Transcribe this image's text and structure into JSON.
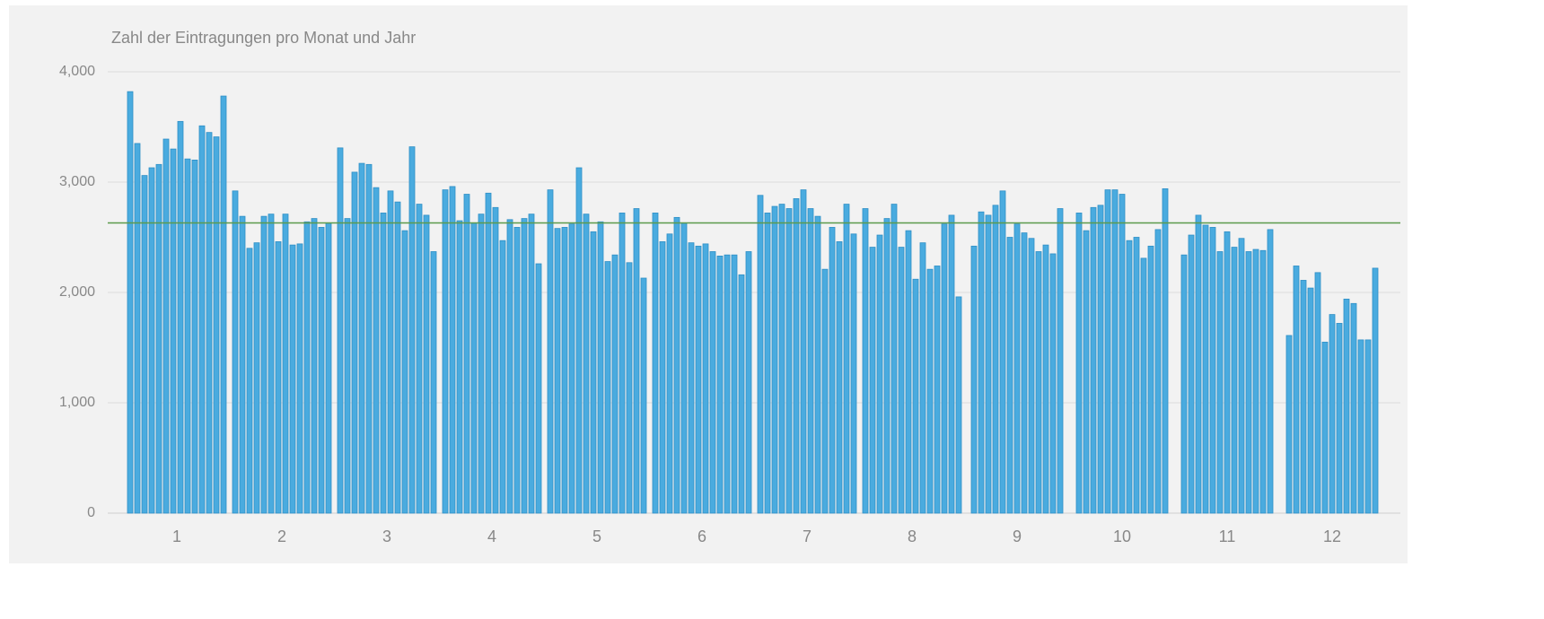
{
  "chart_data": {
    "type": "grouped-bar",
    "title": "Zahl der Eintragungen pro Monat und Jahr",
    "categories": [
      "1",
      "2",
      "3",
      "4",
      "5",
      "6",
      "7",
      "8",
      "9",
      "10",
      "11",
      "12"
    ],
    "values": [
      [
        3820,
        3350,
        3060,
        3130,
        3160,
        3390,
        3300,
        3550,
        3210,
        3200,
        3510,
        3450,
        3410,
        3780
      ],
      [
        2920,
        2690,
        2400,
        2450,
        2690,
        2710,
        2460,
        2710,
        2430,
        2440,
        2640,
        2670,
        2590,
        2630
      ],
      [
        3310,
        2670,
        3090,
        3170,
        3160,
        2950,
        2720,
        2920,
        2820,
        2560,
        3320,
        2800,
        2700,
        2370
      ],
      [
        2930,
        2960,
        2650,
        2890,
        2630,
        2710,
        2900,
        2770,
        2470,
        2660,
        2590,
        2670,
        2710,
        2260
      ],
      [
        2930,
        2580,
        2590,
        2620,
        3130,
        2710,
        2550,
        2640,
        2280,
        2340,
        2720,
        2270,
        2760,
        2130
      ],
      [
        2720,
        2460,
        2530,
        2680,
        2630,
        2450,
        2420,
        2440,
        2370,
        2330,
        2340,
        2340,
        2160,
        2370
      ],
      [
        2880,
        2720,
        2780,
        2800,
        2760,
        2850,
        2930,
        2760,
        2690,
        2210,
        2590,
        2460,
        2800,
        2530
      ],
      [
        2760,
        2410,
        2520,
        2670,
        2800,
        2410,
        2560,
        2120,
        2450,
        2210,
        2240,
        2620,
        2700,
        1960
      ],
      [
        2420,
        2730,
        2700,
        2790,
        2920,
        2500,
        2620,
        2540,
        2490,
        2370,
        2430,
        2350,
        2760
      ],
      [
        2720,
        2560,
        2770,
        2790,
        2930,
        2930,
        2890,
        2470,
        2500,
        2310,
        2420,
        2570,
        2940
      ],
      [
        2340,
        2520,
        2700,
        2610,
        2590,
        2370,
        2550,
        2410,
        2490,
        2370,
        2390,
        2380,
        2570
      ],
      [
        1610,
        2240,
        2110,
        2040,
        2180,
        1550,
        1800,
        1720,
        1940,
        1900,
        1570,
        1570,
        2220
      ]
    ],
    "color": "#4aabdf",
    "reference_line": 2630,
    "reference_color": "#5b9a4c",
    "ylim": [
      0,
      4000
    ],
    "yticks": [
      0,
      {
        "value": 1000,
        "label": "1,000"
      },
      {
        "value": 2000,
        "label": "2,000"
      },
      {
        "value": 3000,
        "label": "3,000"
      },
      {
        "value": 4000,
        "label": "4,000"
      }
    ],
    "grid": true
  }
}
